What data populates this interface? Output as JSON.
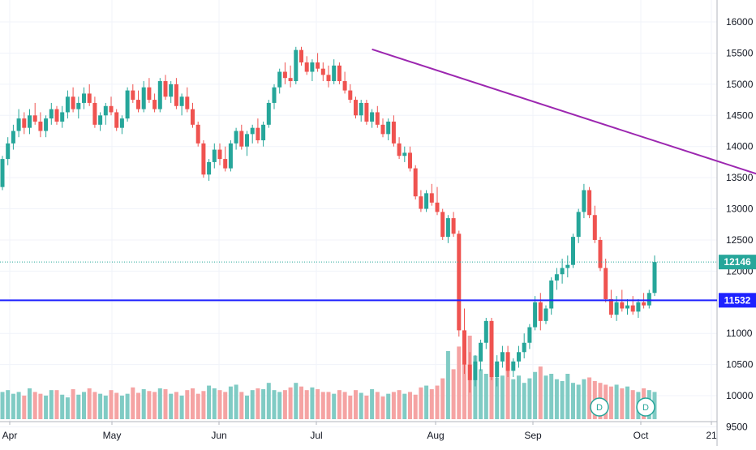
{
  "chart_data": {
    "type": "candlestick",
    "y_axis": {
      "side": "right",
      "range": [
        9350,
        16300
      ],
      "ticks": [
        9500,
        10000,
        10500,
        11000,
        11500,
        12000,
        12500,
        13000,
        13500,
        14000,
        14500,
        15000,
        15500,
        16000
      ]
    },
    "x_axis": {
      "labels": [
        "Apr",
        "May",
        "Jun",
        "Jul",
        "Aug",
        "Sep",
        "Oct",
        "21"
      ]
    },
    "price_labels": [
      {
        "value": 12146,
        "text": "12146",
        "style": "last-price",
        "color": "#26a69a"
      },
      {
        "value": 11532,
        "text": "11532",
        "style": "horizontal-line",
        "color": "#1e22ff"
      }
    ],
    "trendline": {
      "color": "#9c27b0",
      "from": {
        "bar": 68,
        "price": 15560
      },
      "to": {
        "bar": 176,
        "price": 12510
      }
    },
    "dividend_markers": [
      "D",
      "D"
    ],
    "colors": {
      "up": "#26a69a",
      "down": "#ef5350",
      "up_volume": "#80cbc4",
      "down_volume": "#f5a3a3",
      "grid": "#f0f3fa",
      "axis_text": "#131722"
    },
    "series": [
      {
        "name": "price",
        "ohlc": [
          [
            13350,
            13850,
            13300,
            13800
          ],
          [
            13800,
            14150,
            13700,
            14050
          ],
          [
            14050,
            14350,
            13950,
            14250
          ],
          [
            14250,
            14600,
            14150,
            14450
          ],
          [
            14450,
            14550,
            14200,
            14300
          ],
          [
            14300,
            14600,
            14200,
            14500
          ],
          [
            14500,
            14700,
            14350,
            14400
          ],
          [
            14400,
            14550,
            14150,
            14250
          ],
          [
            14250,
            14500,
            14150,
            14450
          ],
          [
            14450,
            14700,
            14350,
            14600
          ],
          [
            14600,
            14650,
            14350,
            14400
          ],
          [
            14400,
            14650,
            14300,
            14550
          ],
          [
            14550,
            14900,
            14450,
            14800
          ],
          [
            14800,
            14950,
            14550,
            14600
          ],
          [
            14600,
            14800,
            14450,
            14700
          ],
          [
            14700,
            14950,
            14600,
            14850
          ],
          [
            14850,
            15000,
            14650,
            14700
          ],
          [
            14700,
            14800,
            14300,
            14350
          ],
          [
            14350,
            14550,
            14250,
            14500
          ],
          [
            14500,
            14700,
            14350,
            14650
          ],
          [
            14650,
            14800,
            14500,
            14550
          ],
          [
            14550,
            14600,
            14250,
            14300
          ],
          [
            14300,
            14500,
            14200,
            14450
          ],
          [
            14450,
            14950,
            14400,
            14900
          ],
          [
            14900,
            15000,
            14700,
            14750
          ],
          [
            14750,
            14900,
            14550,
            14600
          ],
          [
            14600,
            15050,
            14550,
            14950
          ],
          [
            14950,
            15100,
            14700,
            14750
          ],
          [
            14750,
            14850,
            14550,
            14600
          ],
          [
            14600,
            15100,
            14550,
            15050
          ],
          [
            15050,
            15150,
            14750,
            14800
          ],
          [
            14800,
            15050,
            14700,
            15000
          ],
          [
            15000,
            15100,
            14600,
            14650
          ],
          [
            14650,
            14850,
            14500,
            14800
          ],
          [
            14800,
            14950,
            14550,
            14600
          ],
          [
            14600,
            14700,
            14300,
            14350
          ],
          [
            14350,
            14400,
            14000,
            14050
          ],
          [
            14050,
            14100,
            13500,
            13550
          ],
          [
            13550,
            13800,
            13450,
            13750
          ],
          [
            13750,
            14050,
            13650,
            13950
          ],
          [
            13950,
            14050,
            13700,
            13800
          ],
          [
            13800,
            14000,
            13600,
            13650
          ],
          [
            13650,
            14100,
            13600,
            14050
          ],
          [
            14050,
            14300,
            13950,
            14250
          ],
          [
            14250,
            14350,
            13950,
            14000
          ],
          [
            14000,
            14250,
            13850,
            14200
          ],
          [
            14200,
            14350,
            14050,
            14300
          ],
          [
            14300,
            14450,
            14050,
            14100
          ],
          [
            14100,
            14400,
            14000,
            14350
          ],
          [
            14350,
            14750,
            14300,
            14700
          ],
          [
            14700,
            15000,
            14600,
            14950
          ],
          [
            14950,
            15250,
            14850,
            15200
          ],
          [
            15200,
            15350,
            15000,
            15100
          ],
          [
            15100,
            15300,
            14950,
            15050
          ],
          [
            15050,
            15600,
            15000,
            15550
          ],
          [
            15550,
            15600,
            15300,
            15350
          ],
          [
            15350,
            15450,
            15150,
            15200
          ],
          [
            15200,
            15400,
            15050,
            15350
          ],
          [
            15350,
            15500,
            15200,
            15250
          ],
          [
            15250,
            15350,
            15050,
            15150
          ],
          [
            15150,
            15300,
            14950,
            15050
          ],
          [
            15050,
            15400,
            15000,
            15300
          ],
          [
            15300,
            15350,
            15000,
            15050
          ],
          [
            15050,
            15200,
            14850,
            14900
          ],
          [
            14900,
            15000,
            14700,
            14750
          ],
          [
            14750,
            14800,
            14450,
            14500
          ],
          [
            14500,
            14750,
            14400,
            14700
          ],
          [
            14700,
            14750,
            14350,
            14400
          ],
          [
            14400,
            14600,
            14300,
            14550
          ],
          [
            14550,
            14650,
            14300,
            14350
          ],
          [
            14350,
            14450,
            14150,
            14200
          ],
          [
            14200,
            14450,
            14100,
            14400
          ],
          [
            14400,
            14500,
            14000,
            14050
          ],
          [
            14050,
            14150,
            13800,
            13850
          ],
          [
            13850,
            14000,
            13750,
            13900
          ],
          [
            13900,
            14000,
            13600,
            13650
          ],
          [
            13650,
            13700,
            13150,
            13200
          ],
          [
            13200,
            13300,
            12950,
            13000
          ],
          [
            13000,
            13300,
            12950,
            13250
          ],
          [
            13250,
            13400,
            13050,
            13100
          ],
          [
            13100,
            13350,
            12900,
            12950
          ],
          [
            12950,
            13000,
            12500,
            12550
          ],
          [
            12550,
            12900,
            12450,
            12850
          ],
          [
            12850,
            12950,
            12550,
            12600
          ],
          [
            12600,
            12650,
            10950,
            11050
          ],
          [
            11050,
            11400,
            10350,
            10500
          ],
          [
            10500,
            10700,
            10050,
            10250
          ],
          [
            10250,
            10650,
            10150,
            10550
          ],
          [
            10550,
            10900,
            10400,
            10850
          ],
          [
            10850,
            11250,
            10750,
            11200
          ],
          [
            11200,
            11250,
            10250,
            10300
          ],
          [
            10300,
            10650,
            10150,
            10550
          ],
          [
            10550,
            10800,
            10450,
            10700
          ],
          [
            10700,
            10800,
            10300,
            10400
          ],
          [
            10400,
            10600,
            10300,
            10550
          ],
          [
            10550,
            10800,
            10450,
            10700
          ],
          [
            10700,
            11000,
            10600,
            10850
          ],
          [
            10850,
            11150,
            10750,
            11100
          ],
          [
            11100,
            11600,
            11050,
            11500
          ],
          [
            11500,
            11650,
            11050,
            11200
          ],
          [
            11200,
            11450,
            11150,
            11400
          ],
          [
            11400,
            11900,
            11300,
            11850
          ],
          [
            11850,
            12050,
            11700,
            11950
          ],
          [
            11950,
            12200,
            11800,
            12050
          ],
          [
            12050,
            12250,
            11900,
            12100
          ],
          [
            12100,
            12600,
            12050,
            12550
          ],
          [
            12550,
            13000,
            12450,
            12950
          ],
          [
            12950,
            13400,
            12850,
            13300
          ],
          [
            13300,
            13350,
            12850,
            12900
          ],
          [
            12900,
            13050,
            12450,
            12500
          ],
          [
            12500,
            12550,
            12000,
            12050
          ],
          [
            12050,
            12200,
            11500,
            11550
          ],
          [
            11550,
            11700,
            11250,
            11300
          ],
          [
            11300,
            11600,
            11200,
            11500
          ],
          [
            11500,
            11700,
            11350,
            11400
          ],
          [
            11400,
            11550,
            11300,
            11450
          ],
          [
            11450,
            11600,
            11300,
            11350
          ],
          [
            11350,
            11550,
            11250,
            11500
          ],
          [
            11500,
            11650,
            11400,
            11450
          ],
          [
            11450,
            11700,
            11400,
            11650
          ],
          [
            11650,
            12250,
            11600,
            12146
          ]
        ]
      },
      {
        "name": "volume",
        "values": [
          30,
          32,
          28,
          30,
          26,
          34,
          30,
          28,
          26,
          32,
          32,
          27,
          24,
          33,
          27,
          30,
          34,
          30,
          28,
          26,
          32,
          29,
          26,
          28,
          35,
          29,
          33,
          31,
          30,
          34,
          33,
          28,
          30,
          26,
          32,
          34,
          28,
          31,
          37,
          34,
          32,
          30,
          36,
          38,
          30,
          26,
          32,
          34,
          33,
          40,
          32,
          30,
          32,
          35,
          40,
          36,
          32,
          35,
          33,
          30,
          30,
          28,
          32,
          30,
          26,
          32,
          29,
          26,
          33,
          30,
          25,
          28,
          30,
          32,
          28,
          30,
          27,
          35,
          37,
          33,
          37,
          45,
          75,
          55,
          80,
          88,
          92,
          70,
          55,
          50,
          52,
          46,
          48,
          54,
          44,
          48,
          40,
          45,
          52,
          58,
          48,
          50,
          44,
          42,
          50,
          40,
          38,
          44,
          46,
          42,
          40,
          38,
          36,
          38,
          34,
          36,
          32,
          30,
          34,
          32,
          30
        ]
      }
    ]
  }
}
